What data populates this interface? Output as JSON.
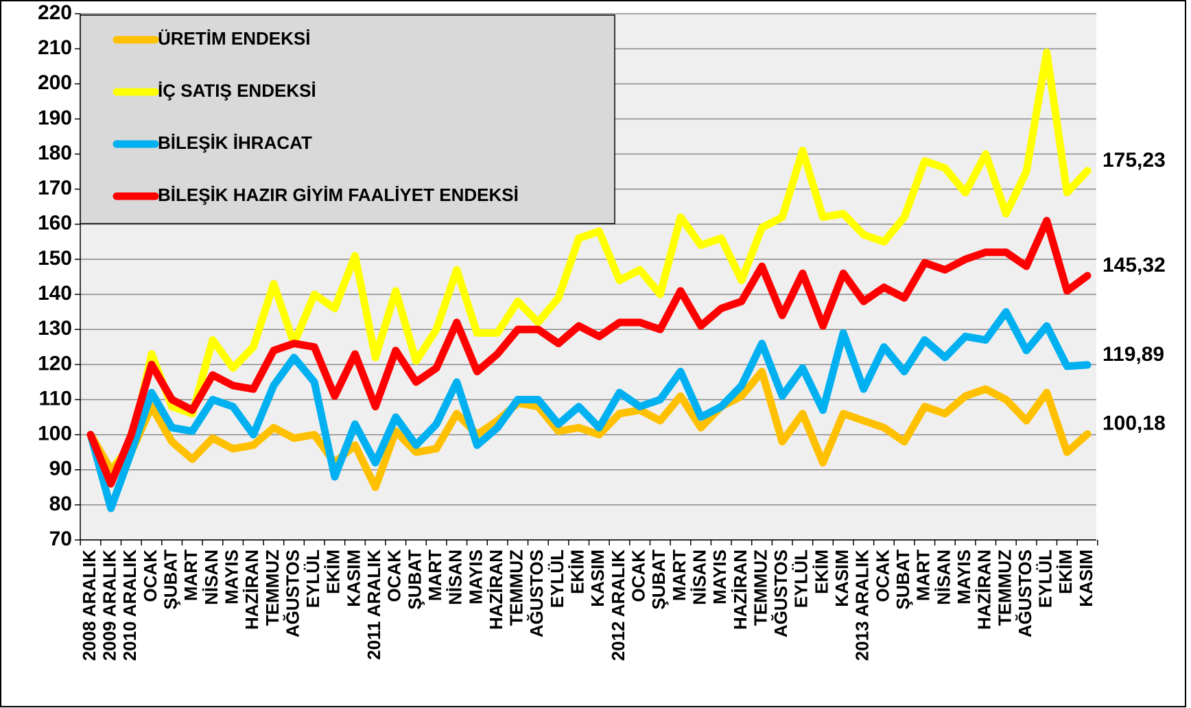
{
  "chart_data": {
    "type": "line",
    "categories": [
      "2008 ARALIK",
      "2009 ARALIK",
      "2010 ARALIK",
      "OCAK",
      "ŞUBAT",
      "MART",
      "NİSAN",
      "MAYIS",
      "HAZİRAN",
      "TEMMUZ",
      "AĞUSTOS",
      "EYLÜL",
      "EKİM",
      "KASIM",
      "2011 ARALIK",
      "OCAK",
      "ŞUBAT",
      "MART",
      "NİSAN",
      "MAYIS",
      "HAZİRAN",
      "TEMMUZ",
      "AĞUSTOS",
      "EYLÜL",
      "EKİM",
      "KASIM",
      "2012 ARALIK",
      "OCAK",
      "ŞUBAT",
      "MART",
      "NİSAN",
      "MAYIS",
      "HAZİRAN",
      "TEMMUZ",
      "AĞUSTOS",
      "EYLÜL",
      "EKİM",
      "KASIM",
      "2013 ARALIK",
      "OCAK",
      "ŞUBAT",
      "MART",
      "NİSAN",
      "MAYIS",
      "HAZİRAN",
      "TEMMUZ",
      "AĞUSTOS",
      "EYLÜL",
      "EKİM",
      "KASIM"
    ],
    "series": [
      {
        "name": "ÜRETİM ENDEKSİ",
        "color": "#FFC000",
        "label": "100,18",
        "values": [
          100,
          90,
          95,
          108,
          98,
          93,
          99,
          96,
          97,
          102,
          99,
          100,
          92,
          97,
          85,
          101,
          95,
          96,
          106,
          100,
          104,
          109,
          108,
          101,
          102,
          100,
          106,
          107,
          104,
          111,
          102,
          108,
          111,
          118,
          98,
          106,
          92,
          106,
          104,
          102,
          98,
          108,
          106,
          111,
          113,
          110,
          104,
          112,
          95,
          100.18
        ]
      },
      {
        "name": " İÇ SATIŞ ENDEKSİ",
        "color": "#FFFF00",
        "label": "175,23",
        "values": [
          100,
          90,
          97,
          123,
          108,
          106,
          127,
          119,
          125,
          143,
          126,
          140,
          136,
          151,
          122,
          141,
          121,
          130,
          147,
          129,
          129,
          138,
          132,
          139,
          156,
          158,
          144,
          147,
          140,
          162,
          154,
          156,
          144,
          159,
          162,
          181,
          162,
          163,
          157,
          155,
          162,
          178,
          176,
          169,
          180,
          163,
          175,
          209,
          169,
          175.23
        ]
      },
      {
        "name": "BİLEŞİK İHRACAT",
        "color": "#00B0F0",
        "label": "119,89",
        "values": [
          100,
          79,
          95,
          112,
          102,
          101,
          110,
          108,
          100,
          114,
          122,
          115,
          88,
          103,
          92,
          105,
          97,
          103,
          115,
          97,
          102,
          110,
          110,
          103,
          108,
          102,
          112,
          108,
          110,
          118,
          105,
          108,
          114,
          126,
          111,
          119,
          107,
          129,
          113,
          125,
          118,
          127,
          122,
          128,
          127,
          135,
          124,
          131,
          119.5,
          119.89
        ]
      },
      {
        "name": "BİLEŞİK HAZIR GİYİM FAALİYET ENDEKSİ",
        "color": "#FF0000",
        "label": "145,32",
        "values": [
          100,
          86,
          100,
          120,
          110,
          107,
          117,
          114,
          113,
          124,
          126,
          125,
          111,
          123,
          108,
          124,
          115,
          119,
          132,
          118,
          123,
          130,
          130,
          126,
          131,
          128,
          132,
          132,
          130,
          141,
          131,
          136,
          138,
          148,
          134,
          146,
          131,
          146,
          138,
          142,
          139,
          149,
          147,
          150,
          152,
          152,
          148,
          161,
          141,
          145.32
        ]
      }
    ],
    "ylim": [
      70,
      220
    ],
    "yticks": [
      70,
      80,
      90,
      100,
      110,
      120,
      130,
      140,
      150,
      160,
      170,
      180,
      190,
      200,
      210,
      220
    ],
    "grid": true,
    "plot_background": "#EFEFEF",
    "legend": "upper left"
  }
}
